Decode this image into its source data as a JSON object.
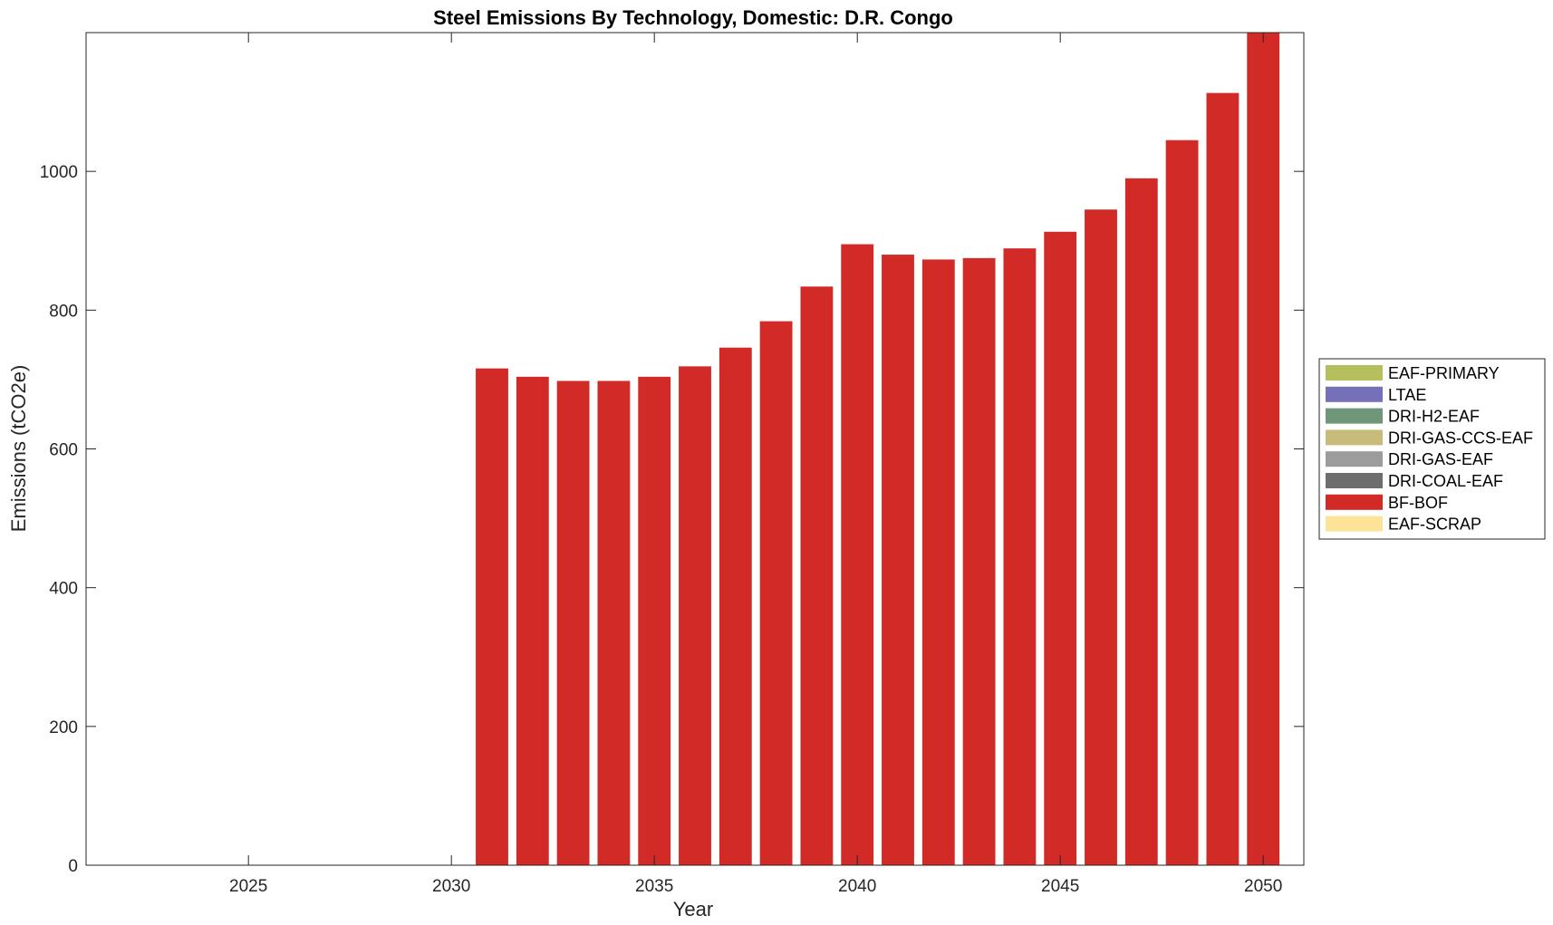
{
  "chart_data": {
    "type": "bar",
    "stacked": true,
    "title": "Steel Emissions By Technology, Domestic: D.R. Congo",
    "xlabel": "Year",
    "ylabel": "Emissions (tCO2e)",
    "xlim": [
      2021,
      2051
    ],
    "ylim": [
      0,
      1200
    ],
    "xticks": [
      2025,
      2030,
      2035,
      2040,
      2045,
      2050
    ],
    "yticks": [
      0,
      200,
      400,
      600,
      800,
      1000
    ],
    "x": [
      2031,
      2032,
      2033,
      2034,
      2035,
      2036,
      2037,
      2038,
      2039,
      2040,
      2041,
      2042,
      2043,
      2044,
      2045,
      2046,
      2047,
      2048,
      2049,
      2050
    ],
    "legend_position": "outside-right",
    "series": [
      {
        "name": "EAF-PRIMARY",
        "color": "#b5bf5d",
        "values": [
          0,
          0,
          0,
          0,
          0,
          0,
          0,
          0,
          0,
          0,
          0,
          0,
          0,
          0,
          0,
          0,
          0,
          0,
          0,
          0
        ]
      },
      {
        "name": "LTAE",
        "color": "#7670b8",
        "values": [
          0,
          0,
          0,
          0,
          0,
          0,
          0,
          0,
          0,
          0,
          0,
          0,
          0,
          0,
          0,
          0,
          0,
          0,
          0,
          0
        ]
      },
      {
        "name": "DRI-H2-EAF",
        "color": "#6f9678",
        "values": [
          0,
          0,
          0,
          0,
          0,
          0,
          0,
          0,
          0,
          0,
          0,
          0,
          0,
          0,
          0,
          0,
          0,
          0,
          0,
          0
        ]
      },
      {
        "name": "DRI-GAS-CCS-EAF",
        "color": "#c7bc7c",
        "values": [
          0,
          0,
          0,
          0,
          0,
          0,
          0,
          0,
          0,
          0,
          0,
          0,
          0,
          0,
          0,
          0,
          0,
          0,
          0,
          0
        ]
      },
      {
        "name": "DRI-GAS-EAF",
        "color": "#9c9c9c",
        "values": [
          0,
          0,
          0,
          0,
          0,
          0,
          0,
          0,
          0,
          0,
          0,
          0,
          0,
          0,
          0,
          0,
          0,
          0,
          0,
          0
        ]
      },
      {
        "name": "DRI-COAL-EAF",
        "color": "#6e6e6e",
        "values": [
          0,
          0,
          0,
          0,
          0,
          0,
          0,
          0,
          0,
          0,
          0,
          0,
          0,
          0,
          0,
          0,
          0,
          0,
          0,
          0
        ]
      },
      {
        "name": "BF-BOF",
        "color": "#d22a26",
        "values": [
          716,
          704,
          698,
          698,
          704,
          719,
          746,
          784,
          834,
          895,
          880,
          873,
          875,
          889,
          913,
          945,
          990,
          1045,
          1113,
          1200
        ]
      },
      {
        "name": "EAF-SCRAP",
        "color": "#fde397",
        "values": [
          0,
          0,
          0,
          0,
          0,
          0,
          0,
          0,
          0,
          0,
          0,
          0,
          0,
          0,
          0,
          0,
          0,
          0,
          0,
          0
        ]
      }
    ]
  }
}
